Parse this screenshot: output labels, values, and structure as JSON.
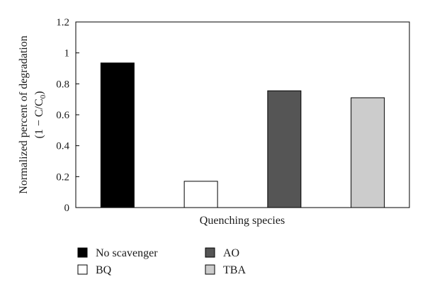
{
  "chart_data": {
    "type": "bar",
    "categories": [
      "No scavenger",
      "BQ",
      "AO",
      "TBA"
    ],
    "values": [
      0.935,
      0.17,
      0.755,
      0.71
    ],
    "colors": [
      "#000000",
      "#ffffff",
      "#555555",
      "#cccccc"
    ],
    "xlabel": "Quenching species",
    "ylabel": {
      "line1": "Normalized percent of degradation",
      "line2_prefix": "(1 − C/C",
      "line2_sub": "0",
      "line2_suffix": ")"
    },
    "ylim": [
      0,
      1.2
    ],
    "yticks": [
      "0",
      "0.2",
      "0.4",
      "0.6",
      "0.8",
      "1",
      "1.2"
    ],
    "grid": false,
    "legend": {
      "position": "bottom",
      "entries": [
        {
          "label": "No scavenger",
          "color": "#000000"
        },
        {
          "label": "AO",
          "color": "#555555"
        },
        {
          "label": "BQ",
          "color": "#ffffff"
        },
        {
          "label": "TBA",
          "color": "#cccccc"
        }
      ]
    }
  }
}
